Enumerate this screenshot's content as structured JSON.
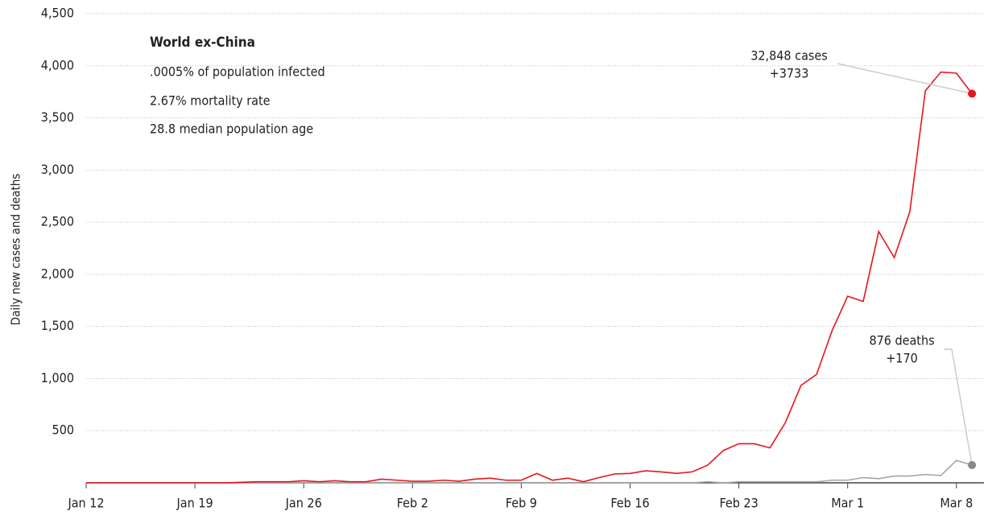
{
  "chart_data": {
    "type": "line",
    "title": "World ex-China",
    "info": [
      ".0005% of population infected",
      "2.67% mortality rate",
      "28.8 median population age"
    ],
    "y_label": "Daily new cases and deaths",
    "categories": [
      "Jan 12",
      null,
      null,
      null,
      null,
      null,
      null,
      "Jan 19",
      null,
      null,
      null,
      null,
      null,
      null,
      "Jan 26",
      null,
      null,
      null,
      null,
      null,
      null,
      "Feb 2",
      null,
      null,
      null,
      null,
      null,
      null,
      "Feb 9",
      null,
      null,
      null,
      null,
      null,
      null,
      "Feb 16",
      null,
      null,
      null,
      null,
      null,
      null,
      "Feb 23",
      null,
      null,
      null,
      null,
      null,
      null,
      "Mar 1",
      null,
      null,
      null,
      null,
      null,
      null,
      "Mar 8",
      null
    ],
    "series": [
      {
        "name": "cases",
        "color": "#e8141c",
        "values": [
          0,
          0,
          0,
          0,
          0,
          0,
          0,
          0,
          0,
          0,
          5,
          10,
          10,
          10,
          20,
          10,
          20,
          10,
          10,
          35,
          25,
          15,
          15,
          25,
          15,
          35,
          45,
          25,
          25,
          90,
          25,
          45,
          10,
          50,
          85,
          90,
          115,
          105,
          90,
          105,
          170,
          310,
          375,
          375,
          335,
          580,
          935,
          1040,
          1460,
          1790,
          1740,
          2410,
          2160,
          2600,
          3760,
          3940,
          3930,
          3733
        ]
      },
      {
        "name": "deaths",
        "color": "#a6a6a6",
        "values": [
          0,
          0,
          0,
          0,
          0,
          0,
          0,
          0,
          0,
          0,
          0,
          0,
          0,
          0,
          0,
          0,
          0,
          0,
          0,
          0,
          0,
          0,
          0,
          0,
          0,
          0,
          0,
          0,
          0,
          0,
          0,
          0,
          0,
          0,
          0,
          0,
          0,
          0,
          0,
          0,
          10,
          0,
          10,
          10,
          10,
          10,
          10,
          10,
          25,
          25,
          50,
          40,
          65,
          65,
          80,
          70,
          215,
          170
        ]
      }
    ],
    "annotations": [
      [
        "32,848 cases",
        "+3733"
      ],
      [
        "876 deaths",
        "+170"
      ]
    ],
    "ylim": [
      0,
      4500
    ],
    "yticks": [
      500,
      {
        "value": 1000,
        "label": "1,000"
      },
      {
        "value": 1500,
        "label": "1,500"
      },
      {
        "value": 2000,
        "label": "2,000"
      },
      {
        "value": 2500,
        "label": "2,500"
      },
      {
        "value": 3000,
        "label": "3,000"
      },
      {
        "value": 3500,
        "label": "3,500"
      },
      {
        "value": 4000,
        "label": "4,000"
      },
      {
        "value": 4500,
        "label": "4,500"
      }
    ],
    "grid": true
  }
}
